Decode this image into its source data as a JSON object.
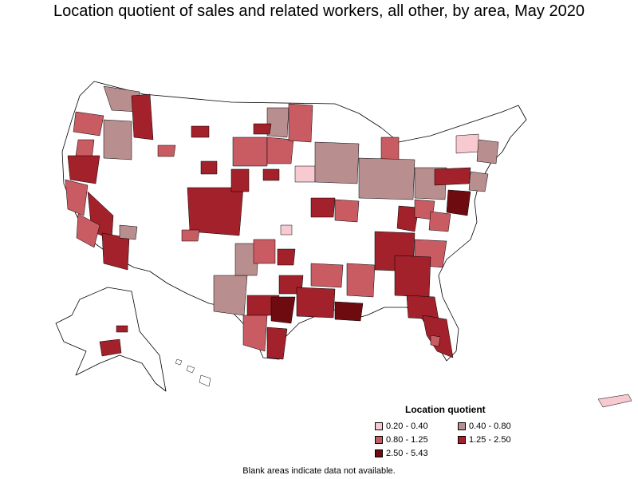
{
  "title": "Location quotient of sales and related workers, all other, by area, May 2020",
  "legend": {
    "title": "Location quotient",
    "items": [
      {
        "label": "0.20 - 0.40",
        "color": "#f7c9d0"
      },
      {
        "label": "0.40 - 0.80",
        "color": "#b98e8e"
      },
      {
        "label": "0.80 - 1.25",
        "color": "#c95b63"
      },
      {
        "label": "1.25 - 2.50",
        "color": "#a3212b"
      },
      {
        "label": "2.50 - 5.43",
        "color": "#6e0b10"
      }
    ]
  },
  "footnote": "Blank areas indicate data not available.",
  "colors": {
    "no_data": "#ffffff",
    "border": "#000000"
  }
}
